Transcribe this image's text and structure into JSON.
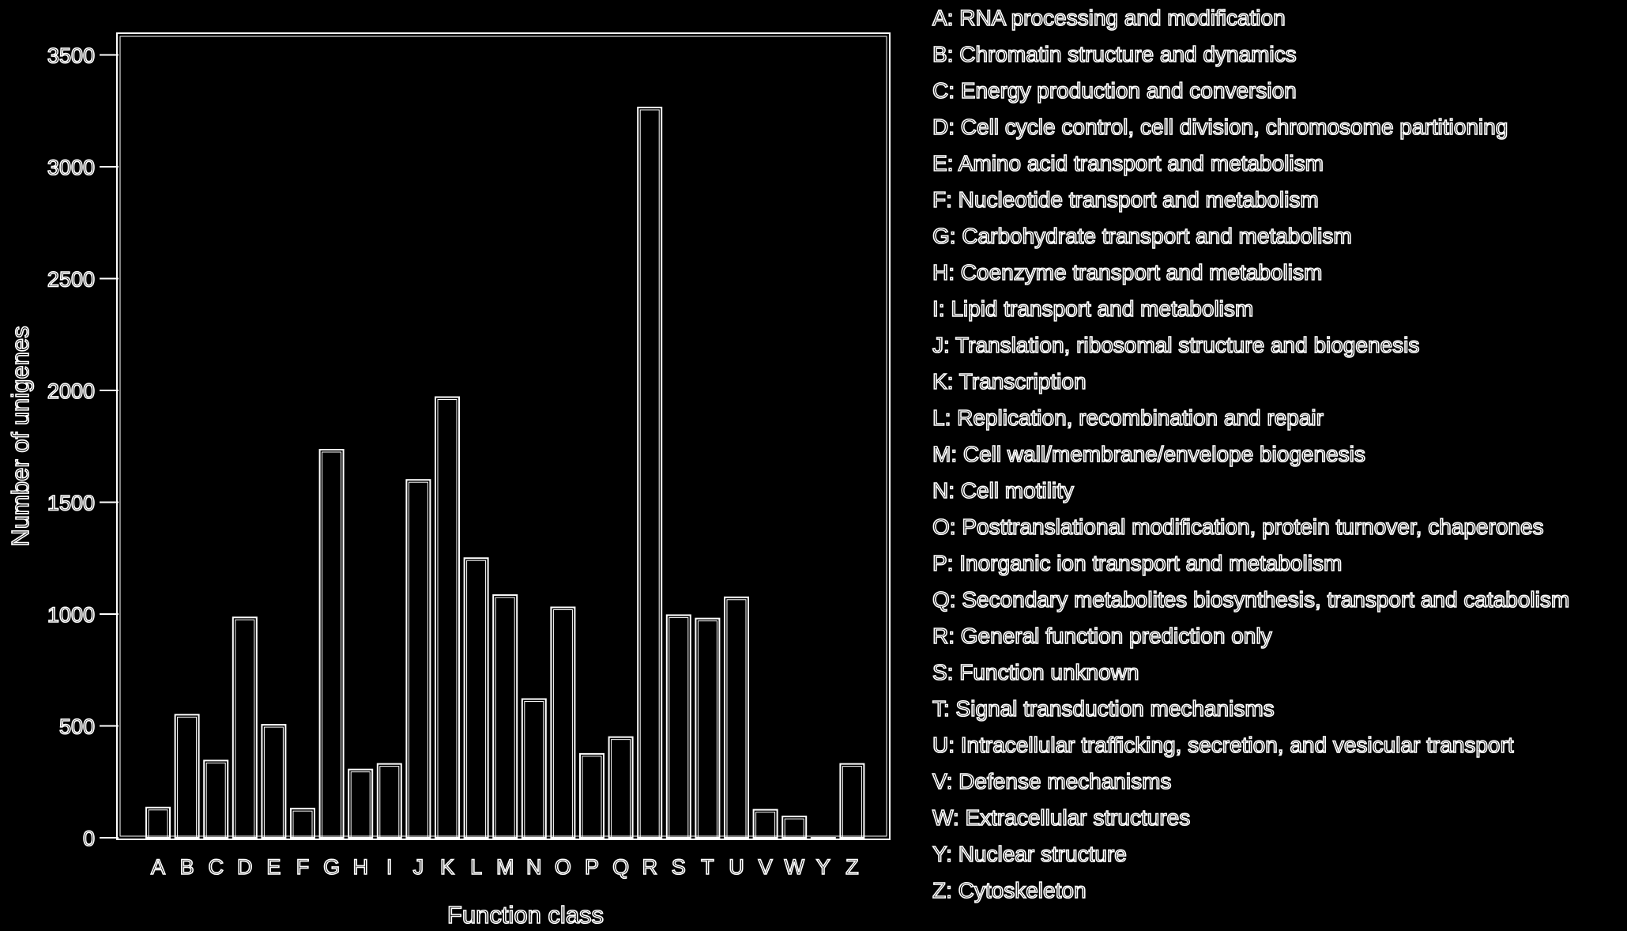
{
  "chart_data": {
    "type": "bar",
    "xlabel": "Function class",
    "ylabel": "Number of unigenes",
    "ylim": [
      0,
      3600
    ],
    "yticks": [
      0,
      500,
      1000,
      1500,
      2000,
      2500,
      3000,
      3500
    ],
    "categories": [
      "A",
      "B",
      "C",
      "D",
      "E",
      "F",
      "G",
      "H",
      "I",
      "J",
      "K",
      "L",
      "M",
      "N",
      "O",
      "P",
      "Q",
      "R",
      "S",
      "T",
      "U",
      "V",
      "W",
      "Y",
      "Z"
    ],
    "values": [
      135,
      550,
      345,
      985,
      505,
      130,
      1735,
      305,
      330,
      1600,
      1970,
      1250,
      1085,
      620,
      1030,
      375,
      450,
      3265,
      995,
      980,
      1075,
      125,
      95,
      0,
      330
    ],
    "grid": false,
    "legend_position": "right",
    "colors": {
      "background": "#000000",
      "stroke": "#ffffff"
    }
  },
  "legend": [
    "A: RNA processing and modification",
    "B: Chromatin structure and dynamics",
    "C: Energy production and conversion",
    "D: Cell cycle control, cell division, chromosome partitioning",
    "E: Amino acid transport and metabolism",
    "F: Nucleotide transport and metabolism",
    "G: Carbohydrate transport and metabolism",
    "H: Coenzyme transport and metabolism",
    "I: Lipid transport and metabolism",
    "J: Translation, ribosomal structure and biogenesis",
    "K: Transcription",
    "L: Replication, recombination and repair",
    "M: Cell wall/membrane/envelope biogenesis",
    "N: Cell motility",
    "O: Posttranslational modification, protein turnover, chaperones",
    "P: Inorganic ion transport and metabolism",
    "Q: Secondary metabolites biosynthesis, transport and catabolism",
    "R: General function prediction only",
    "S: Function unknown",
    "T: Signal transduction mechanisms",
    "U: Intracellular trafficking, secretion, and vesicular transport",
    "V: Defense mechanisms",
    "W: Extracellular structures",
    "Y: Nuclear structure",
    "Z: Cytoskeleton"
  ]
}
